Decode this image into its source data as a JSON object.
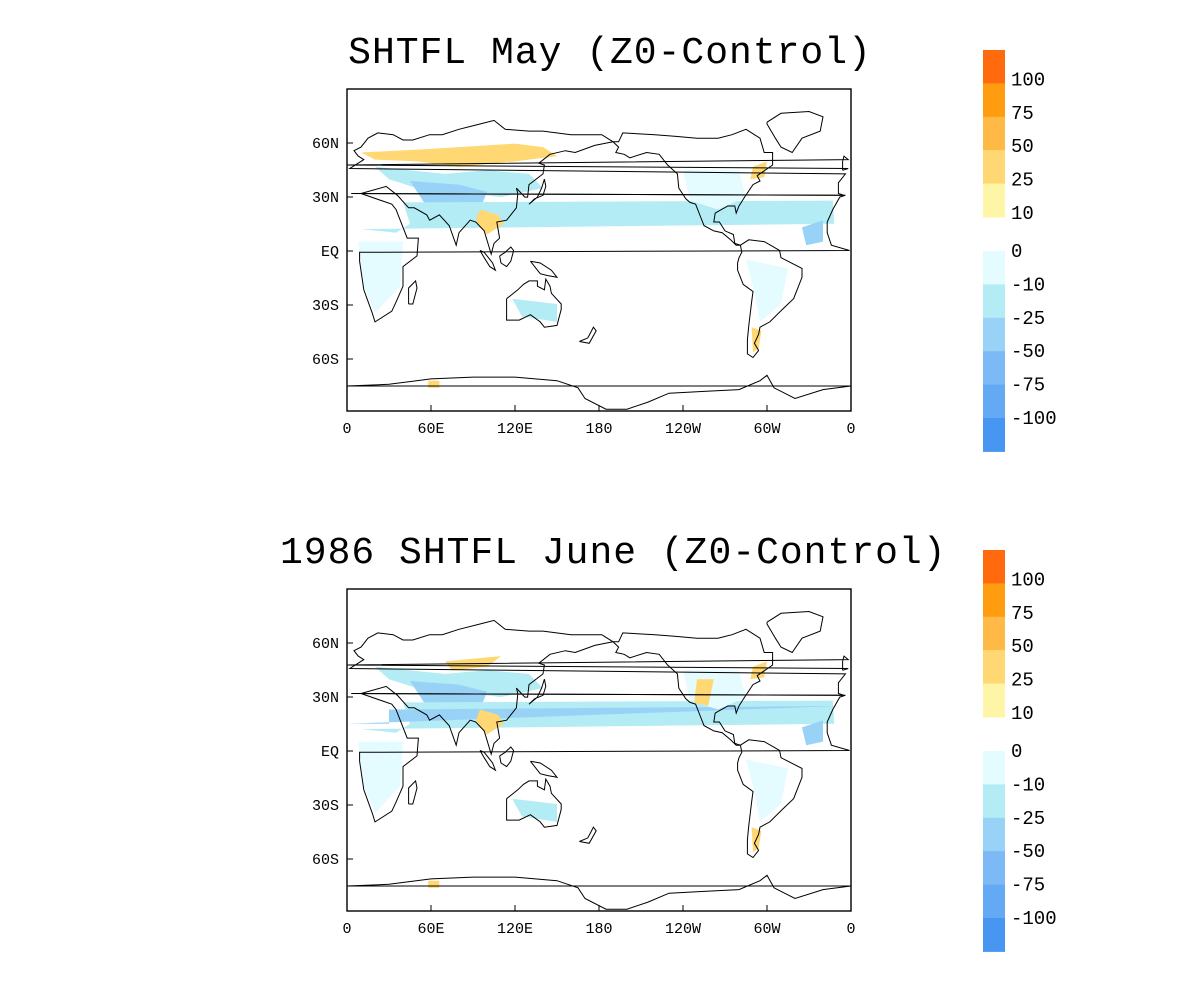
{
  "panels": [
    {
      "title": "SHTFL May (Z0-Control)",
      "lat_labels": [
        "60N",
        "30N",
        "EQ",
        "30S",
        "60S"
      ],
      "lon_labels": [
        "0",
        "60E",
        "120E",
        "180",
        "120W",
        "60W",
        "0"
      ]
    },
    {
      "title": "1986 SHTFL June (Z0-Control)",
      "lat_labels": [
        "60N",
        "30N",
        "EQ",
        "30S",
        "60S"
      ],
      "lon_labels": [
        "0",
        "60E",
        "120E",
        "180",
        "120W",
        "60W",
        "0"
      ]
    }
  ],
  "colorbar": {
    "positive_levels": [
      "100",
      "75",
      "50",
      "25",
      "10"
    ],
    "negative_levels": [
      "0",
      "-10",
      "-25",
      "-50",
      "-75",
      "-100"
    ],
    "positive_colors": [
      "#ff6a0f",
      "#ff9c10",
      "#ffb946",
      "#ffd874",
      "#fff5a6"
    ],
    "negative_colors": [
      "#e4fcff",
      "#b3ecf4",
      "#98d2f7",
      "#7dbaf5",
      "#64a9f4",
      "#4796f2"
    ]
  },
  "chart_data": {
    "type": "heatmap",
    "variable": "SHTFL",
    "difference": "Z0-Control",
    "panels": [
      "SHTFL May (Z0-Control)",
      "1986 SHTFL June (Z0-Control)"
    ],
    "lat_ticks": [
      "60N",
      "30N",
      "EQ",
      "30S",
      "60S"
    ],
    "lon_ticks": [
      "0",
      "60E",
      "120E",
      "180",
      "120W",
      "60W",
      "0"
    ],
    "levels": [
      -100,
      -75,
      -50,
      -25,
      -10,
      0,
      10,
      25,
      50,
      75,
      100
    ]
  }
}
